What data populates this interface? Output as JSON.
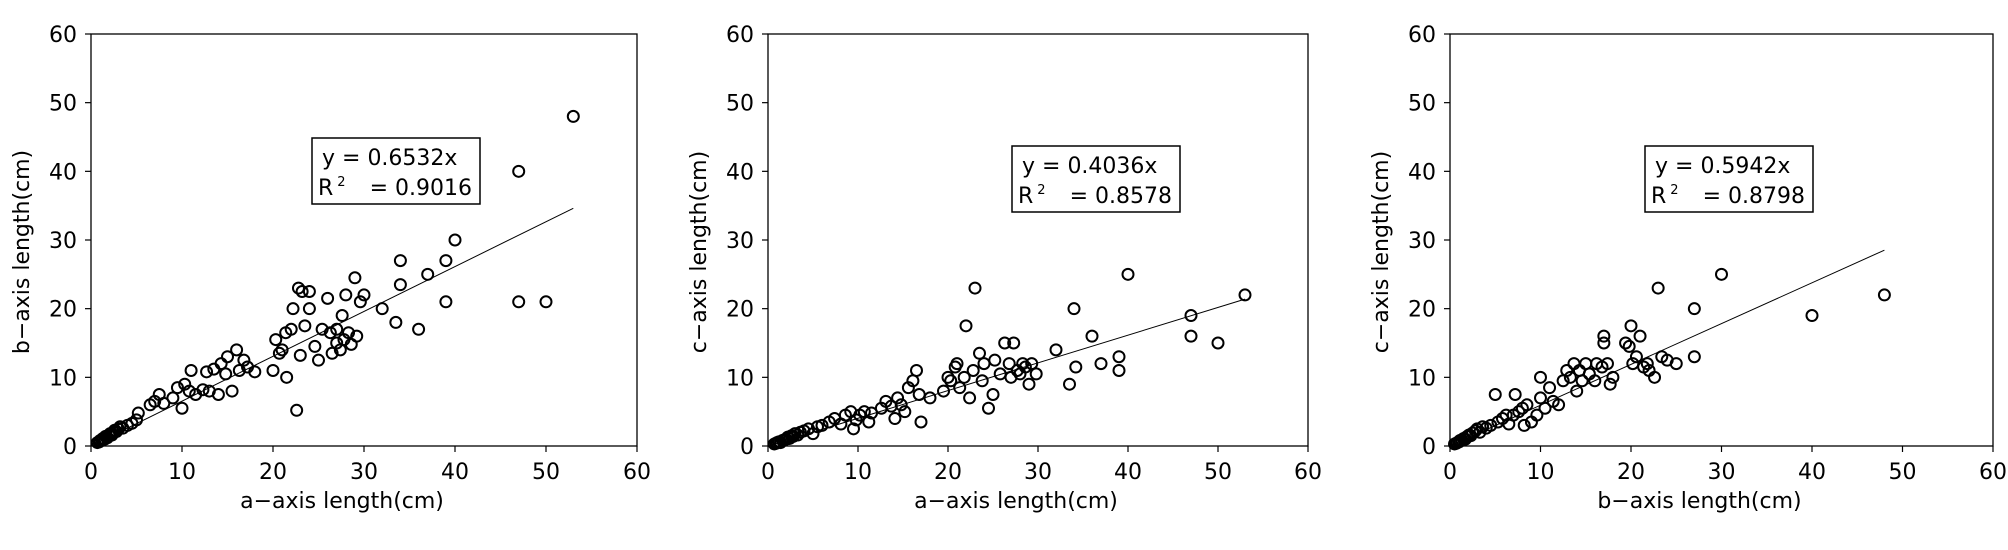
{
  "chart_data": [
    {
      "type": "scatter",
      "xlabel": "a−axis length(cm)",
      "ylabel": "b−axis length(cm)",
      "xlim": [
        0,
        60
      ],
      "ylim": [
        0,
        60
      ],
      "xticks": [
        "0",
        "10",
        "20",
        "30",
        "40",
        "50",
        "60"
      ],
      "yticks": [
        "0",
        "10",
        "20",
        "30",
        "40",
        "50",
        "60"
      ],
      "grid": false,
      "equation": "y = 0.6532x",
      "r2_label": "R",
      "r2_sup": "2",
      "r2_value": "= 0.9016",
      "slope": 0.6532,
      "fit_range": [
        0,
        53
      ],
      "points": [
        [
          0.7,
          0.5
        ],
        [
          0.9,
          0.6
        ],
        [
          1,
          0.8
        ],
        [
          1.2,
          0.9
        ],
        [
          1.3,
          1.1
        ],
        [
          1.5,
          1.0
        ],
        [
          1.6,
          1.4
        ],
        [
          1.8,
          1.2
        ],
        [
          2,
          1.5
        ],
        [
          2.1,
          1.8
        ],
        [
          2.3,
          1.6
        ],
        [
          2.5,
          2.0
        ],
        [
          2.6,
          2.3
        ],
        [
          2.8,
          2.1
        ],
        [
          3,
          2.5
        ],
        [
          3.2,
          2.8
        ],
        [
          3.5,
          2.6
        ],
        [
          4,
          3.0
        ],
        [
          4.5,
          3.3
        ],
        [
          5,
          3.8
        ],
        [
          5.2,
          4.8
        ],
        [
          6.5,
          6.0
        ],
        [
          7,
          6.5
        ],
        [
          7.5,
          7.5
        ],
        [
          8,
          6.2
        ],
        [
          9,
          7.0
        ],
        [
          9.5,
          8.5
        ],
        [
          10,
          5.5
        ],
        [
          10.3,
          9.0
        ],
        [
          10.8,
          8.0
        ],
        [
          11,
          11
        ],
        [
          11.5,
          7.5
        ],
        [
          12.3,
          8.2
        ],
        [
          12.7,
          10.8
        ],
        [
          13,
          8.0
        ],
        [
          13.5,
          11.2
        ],
        [
          14,
          7.5
        ],
        [
          14.3,
          12.0
        ],
        [
          14.8,
          10.5
        ],
        [
          15,
          13
        ],
        [
          15.5,
          8.0
        ],
        [
          16,
          14
        ],
        [
          16.3,
          11
        ],
        [
          16.8,
          12.5
        ],
        [
          17.2,
          11.5
        ],
        [
          18,
          10.8
        ],
        [
          20,
          11
        ],
        [
          20.3,
          15.5
        ],
        [
          20.7,
          13.5
        ],
        [
          21,
          14
        ],
        [
          21.4,
          16.5
        ],
        [
          21.5,
          10
        ],
        [
          22,
          17
        ],
        [
          22.2,
          20
        ],
        [
          22.6,
          5.2
        ],
        [
          22.8,
          23
        ],
        [
          23,
          13.2
        ],
        [
          23.2,
          22.5
        ],
        [
          23.5,
          17.5
        ],
        [
          24,
          20
        ],
        [
          24,
          22.5
        ],
        [
          24.6,
          14.5
        ],
        [
          25,
          12.5
        ],
        [
          25.4,
          17
        ],
        [
          26,
          21.5
        ],
        [
          26.3,
          16.5
        ],
        [
          26.5,
          13.5
        ],
        [
          27,
          15
        ],
        [
          27,
          17
        ],
        [
          27.4,
          14
        ],
        [
          27.6,
          19
        ],
        [
          27.8,
          15.5
        ],
        [
          28,
          22
        ],
        [
          28.3,
          16.5
        ],
        [
          28.6,
          14.8
        ],
        [
          29,
          24.5
        ],
        [
          29.2,
          16
        ],
        [
          29.6,
          21
        ],
        [
          30,
          22
        ],
        [
          32,
          20
        ],
        [
          33.5,
          18
        ],
        [
          34,
          27
        ],
        [
          34,
          23.5
        ],
        [
          36,
          17
        ],
        [
          37,
          25
        ],
        [
          39,
          27
        ],
        [
          39,
          21
        ],
        [
          40,
          30
        ],
        [
          47,
          21
        ],
        [
          47,
          40
        ],
        [
          50,
          21
        ],
        [
          53,
          48
        ]
      ]
    },
    {
      "type": "scatter",
      "xlabel": "a−axis length(cm)",
      "ylabel": "c−axis length(cm)",
      "xlim": [
        0,
        60
      ],
      "ylim": [
        0,
        60
      ],
      "xticks": [
        "0",
        "10",
        "20",
        "30",
        "40",
        "50",
        "60"
      ],
      "yticks": [
        "0",
        "10",
        "20",
        "30",
        "40",
        "50",
        "60"
      ],
      "grid": false,
      "equation": "y = 0.4036x",
      "r2_label": "R",
      "r2_sup": "2",
      "r2_value": "= 0.8578",
      "slope": 0.4036,
      "fit_range": [
        0,
        53
      ],
      "points": [
        [
          0.7,
          0.3
        ],
        [
          0.9,
          0.4
        ],
        [
          1,
          0.5
        ],
        [
          1.2,
          0.6
        ],
        [
          1.4,
          0.5
        ],
        [
          1.6,
          0.8
        ],
        [
          1.8,
          0.9
        ],
        [
          2,
          1.0
        ],
        [
          2.2,
          1.3
        ],
        [
          2.4,
          1.1
        ],
        [
          2.6,
          1.5
        ],
        [
          2.8,
          1.4
        ],
        [
          3,
          1.8
        ],
        [
          3.3,
          1.6
        ],
        [
          3.6,
          2.0
        ],
        [
          4,
          2.2
        ],
        [
          4.5,
          2.5
        ],
        [
          5,
          1.8
        ],
        [
          5.5,
          2.8
        ],
        [
          6,
          3.0
        ],
        [
          6.8,
          3.5
        ],
        [
          7.4,
          4.0
        ],
        [
          8.1,
          3.2
        ],
        [
          8.6,
          4.5
        ],
        [
          9.2,
          5.0
        ],
        [
          9.5,
          2.5
        ],
        [
          9.8,
          3.8
        ],
        [
          10.2,
          4.5
        ],
        [
          10.7,
          5.0
        ],
        [
          11.2,
          3.5
        ],
        [
          11.5,
          4.8
        ],
        [
          12.6,
          5.5
        ],
        [
          13.1,
          6.5
        ],
        [
          13.7,
          5.8
        ],
        [
          14.1,
          4.0
        ],
        [
          14.4,
          7.0
        ],
        [
          14.8,
          6.0
        ],
        [
          15.2,
          5.0
        ],
        [
          15.6,
          8.5
        ],
        [
          16.1,
          9.5
        ],
        [
          16.5,
          11
        ],
        [
          16.8,
          7.5
        ],
        [
          17,
          3.5
        ],
        [
          18,
          7.0
        ],
        [
          19.5,
          8.0
        ],
        [
          20,
          10
        ],
        [
          20.3,
          9.5
        ],
        [
          20.8,
          11.5
        ],
        [
          21,
          12
        ],
        [
          21.3,
          8.5
        ],
        [
          21.8,
          10
        ],
        [
          22,
          17.5
        ],
        [
          22.4,
          7.0
        ],
        [
          22.8,
          11
        ],
        [
          23,
          23
        ],
        [
          23.5,
          13.5
        ],
        [
          23.8,
          9.5
        ],
        [
          24,
          12
        ],
        [
          24.5,
          5.5
        ],
        [
          25,
          7.5
        ],
        [
          25.2,
          12.5
        ],
        [
          25.8,
          10.5
        ],
        [
          26.3,
          15
        ],
        [
          26.8,
          12
        ],
        [
          27,
          10
        ],
        [
          27.3,
          15
        ],
        [
          27.7,
          11
        ],
        [
          28,
          10.5
        ],
        [
          28.3,
          12
        ],
        [
          28.6,
          11.5
        ],
        [
          29,
          9.0
        ],
        [
          29.3,
          12
        ],
        [
          29.8,
          10.5
        ],
        [
          32,
          14
        ],
        [
          33.5,
          9
        ],
        [
          34,
          20
        ],
        [
          34.2,
          11.5
        ],
        [
          36,
          16
        ],
        [
          37,
          12
        ],
        [
          39,
          13
        ],
        [
          39,
          11
        ],
        [
          40,
          25
        ],
        [
          47,
          19
        ],
        [
          47,
          16
        ],
        [
          50,
          15
        ],
        [
          53,
          22
        ]
      ]
    },
    {
      "type": "scatter",
      "xlabel": "b−axis length(cm)",
      "ylabel": "c−axis length(cm)",
      "xlim": [
        0,
        60
      ],
      "ylim": [
        0,
        60
      ],
      "xticks": [
        "0",
        "10",
        "20",
        "30",
        "40",
        "50",
        "60"
      ],
      "yticks": [
        "0",
        "10",
        "20",
        "30",
        "40",
        "50",
        "60"
      ],
      "grid": false,
      "equation": "y = 0.5942x",
      "r2_label": "R",
      "r2_sup": "2",
      "r2_value": "= 0.8798",
      "slope": 0.5942,
      "fit_range": [
        0,
        48
      ],
      "points": [
        [
          0.5,
          0.3
        ],
        [
          0.7,
          0.4
        ],
        [
          0.8,
          0.5
        ],
        [
          1,
          0.6
        ],
        [
          1.1,
          0.8
        ],
        [
          1.3,
          0.9
        ],
        [
          1.5,
          1.1
        ],
        [
          1.7,
          1.0
        ],
        [
          1.9,
          1.4
        ],
        [
          2.1,
          1.6
        ],
        [
          2.3,
          1.5
        ],
        [
          2.5,
          1.9
        ],
        [
          2.8,
          2.2
        ],
        [
          3,
          2.5
        ],
        [
          3.3,
          2.0
        ],
        [
          3.6,
          2.8
        ],
        [
          4,
          2.6
        ],
        [
          4.5,
          3.0
        ],
        [
          5,
          7.5
        ],
        [
          5.3,
          3.5
        ],
        [
          5.8,
          4.0
        ],
        [
          6.2,
          4.5
        ],
        [
          6.5,
          3.2
        ],
        [
          7,
          4.5
        ],
        [
          7.2,
          7.5
        ],
        [
          7.6,
          5.0
        ],
        [
          8,
          5.5
        ],
        [
          8.2,
          3.0
        ],
        [
          8.5,
          6.0
        ],
        [
          9,
          3.5
        ],
        [
          9.6,
          4.5
        ],
        [
          10,
          7.0
        ],
        [
          10,
          10
        ],
        [
          10.5,
          5.5
        ],
        [
          11,
          8.5
        ],
        [
          11.4,
          6.5
        ],
        [
          12,
          6.0
        ],
        [
          12.5,
          9.5
        ],
        [
          12.9,
          11
        ],
        [
          13.3,
          10
        ],
        [
          13.7,
          12
        ],
        [
          14,
          8.0
        ],
        [
          14.3,
          11
        ],
        [
          14.6,
          9.5
        ],
        [
          15,
          12
        ],
        [
          15.4,
          10.5
        ],
        [
          16,
          9.5
        ],
        [
          16.2,
          12
        ],
        [
          16.8,
          11.5
        ],
        [
          17,
          15
        ],
        [
          17,
          16
        ],
        [
          17.4,
          12
        ],
        [
          17.7,
          9.0
        ],
        [
          18,
          10
        ],
        [
          19.4,
          15
        ],
        [
          19.8,
          14.5
        ],
        [
          20,
          17.5
        ],
        [
          20.2,
          12
        ],
        [
          20.6,
          13
        ],
        [
          21,
          16
        ],
        [
          21.4,
          11.5
        ],
        [
          21.8,
          12
        ],
        [
          22,
          11
        ],
        [
          22.6,
          10
        ],
        [
          23,
          23
        ],
        [
          23.4,
          13
        ],
        [
          24,
          12.5
        ],
        [
          25,
          12
        ],
        [
          27,
          20
        ],
        [
          27,
          13
        ],
        [
          30,
          25
        ],
        [
          40,
          19
        ],
        [
          48,
          22
        ]
      ]
    }
  ]
}
